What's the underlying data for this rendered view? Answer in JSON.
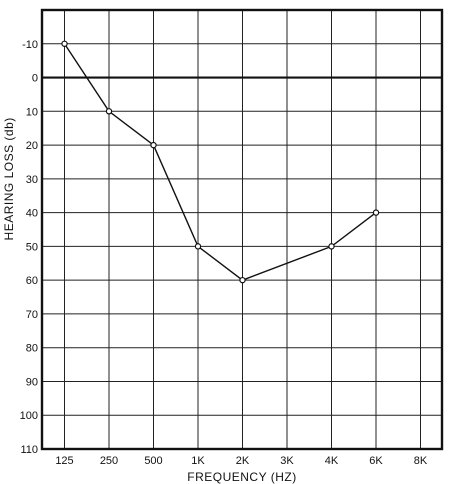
{
  "chart_data": {
    "type": "line",
    "title": "",
    "xlabel": "FREQUENCY (HZ)",
    "ylabel": "HEARING LOSS (db)",
    "categories": [
      "125",
      "250",
      "500",
      "1K",
      "2K",
      "3K",
      "4K",
      "6K",
      "8K"
    ],
    "y_ticks": [
      "-10",
      "0",
      "10",
      "20",
      "30",
      "40",
      "50",
      "60",
      "70",
      "80",
      "90",
      "100",
      "110"
    ],
    "ylim": [
      -20,
      110
    ],
    "y_inverted": true,
    "grid": true,
    "reference_line_y": 0,
    "series": [
      {
        "x": [
          "125",
          "250",
          "500",
          "1K",
          "2K",
          "4K",
          "6K"
        ],
        "values": [
          -10,
          10,
          20,
          50,
          60,
          50,
          40
        ]
      }
    ]
  },
  "colors": {
    "line": "#111111",
    "background": "#ffffff",
    "marker_fill": "#ffffff"
  }
}
